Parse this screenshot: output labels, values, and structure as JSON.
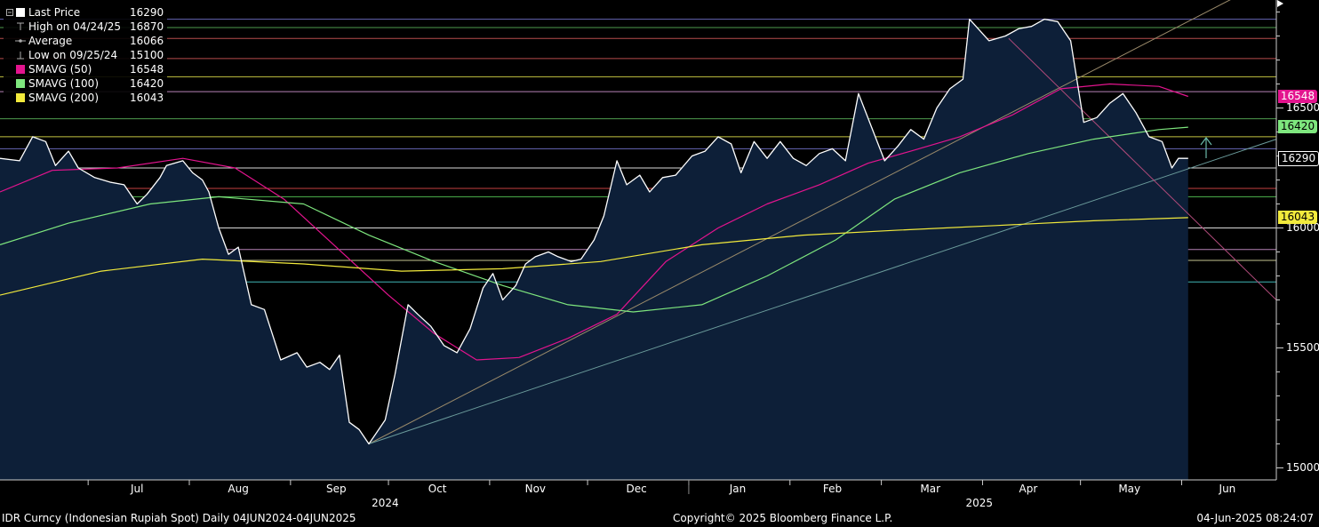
{
  "legend": [
    {
      "label": "Last Price",
      "value": "16290",
      "color": "#ffffff",
      "symbol": "box"
    },
    {
      "label": "High on 04/24/25",
      "value": "16870",
      "color": "#aaaaaa",
      "symbol": "high"
    },
    {
      "label": "Average",
      "value": "16066",
      "color": "#aaaaaa",
      "symbol": "avg"
    },
    {
      "label": "Low on 09/25/24",
      "value": "15100",
      "color": "#aaaaaa",
      "symbol": "low"
    },
    {
      "label": "SMAVG (50)",
      "value": "16548",
      "color": "#e3148e",
      "symbol": "box"
    },
    {
      "label": "SMAVG (100)",
      "value": "16420",
      "color": "#7ee67e",
      "symbol": "box"
    },
    {
      "label": "SMAVG (200)",
      "value": "16043",
      "color": "#f2ea3c",
      "symbol": "box"
    }
  ],
  "badges": [
    {
      "text": "16548",
      "bg": "#e3148e",
      "fg": "#ffffff",
      "value": 16548
    },
    {
      "text": "16420",
      "bg": "#7ee67e",
      "fg": "#000000",
      "value": 16420
    },
    {
      "text": "16290",
      "bg": "#000000",
      "fg": "#ffffff",
      "value": 16290
    },
    {
      "text": "16043",
      "bg": "#f2ea3c",
      "fg": "#000000",
      "value": 16043
    }
  ],
  "footer": {
    "left": "IDR Curncy (Indonesian Rupiah Spot)  Daily 04JUN2024-04JUN2025",
    "center": "Copyright© 2025 Bloomberg Finance L.P.",
    "right": "04-Jun-2025 08:24:07"
  },
  "chart_data": {
    "type": "line",
    "ylim": [
      14950,
      16950
    ],
    "y_ticks": [
      15000,
      15500,
      16000,
      16500
    ],
    "month_labels": [
      "Jul",
      "Aug",
      "Sep",
      "Oct",
      "Nov",
      "Dec",
      "Jan",
      "Feb",
      "Mar",
      "Apr",
      "May",
      "Jun"
    ],
    "year_labels": [
      "2024",
      "2025"
    ],
    "x_start": "2024-06-04",
    "x_end": "2025-06-30",
    "last_data_date": "2025-06-03",
    "horizontal_levels": [
      {
        "value": 16870,
        "color": "#7a7ad6"
      },
      {
        "value": 16835,
        "color": "#5cb85c"
      },
      {
        "value": 16790,
        "color": "#d65a5a"
      },
      {
        "value": 16706,
        "color": "#d65a5a"
      },
      {
        "value": 16630,
        "color": "#e6e64c"
      },
      {
        "value": 16568,
        "color": "#d69ad6"
      },
      {
        "value": 16455,
        "color": "#5cb85c"
      },
      {
        "value": 16380,
        "color": "#e6e64c"
      },
      {
        "value": 16330,
        "color": "#7a7ad6"
      },
      {
        "value": 16250,
        "color": "#ffffff"
      },
      {
        "value": 16165,
        "color": "#e84a4a"
      },
      {
        "value": 16130,
        "color": "#5cd65c"
      },
      {
        "value": 16000,
        "color": "#ffffff"
      },
      {
        "value": 15910,
        "color": "#d69ad6"
      },
      {
        "value": 15865,
        "color": "#e6e6aa"
      },
      {
        "value": 15775,
        "color": "#4cd6d6"
      }
    ],
    "trend_lines": [
      {
        "from": [
          "2024-09-25",
          15100
        ],
        "to": [
          "2025-06-30",
          17050
        ],
        "color": "#9a8a6a"
      },
      {
        "from": [
          "2024-09-25",
          15100
        ],
        "to": [
          "2025-06-30",
          16370
        ],
        "color": "#6a9a9a"
      },
      {
        "from": [
          "2025-04-09",
          16790
        ],
        "to": [
          "2025-06-30",
          15700
        ],
        "color": "#b04a7a"
      }
    ],
    "series": [
      {
        "name": "Last Price",
        "color": "#ffffff",
        "fill": "#0d1f38",
        "points": [
          [
            "2024-06-04",
            16290
          ],
          [
            "2024-06-10",
            16280
          ],
          [
            "2024-06-14",
            16380
          ],
          [
            "2024-06-18",
            16360
          ],
          [
            "2024-06-21",
            16260
          ],
          [
            "2024-06-25",
            16320
          ],
          [
            "2024-06-28",
            16250
          ],
          [
            "2024-07-03",
            16210
          ],
          [
            "2024-07-08",
            16190
          ],
          [
            "2024-07-12",
            16180
          ],
          [
            "2024-07-16",
            16100
          ],
          [
            "2024-07-19",
            16140
          ],
          [
            "2024-07-23",
            16210
          ],
          [
            "2024-07-25",
            16260
          ],
          [
            "2024-07-30",
            16280
          ],
          [
            "2024-08-02",
            16230
          ],
          [
            "2024-08-05",
            16200
          ],
          [
            "2024-08-07",
            16150
          ],
          [
            "2024-08-10",
            16000
          ],
          [
            "2024-08-13",
            15890
          ],
          [
            "2024-08-16",
            15920
          ],
          [
            "2024-08-20",
            15680
          ],
          [
            "2024-08-24",
            15660
          ],
          [
            "2024-08-29",
            15450
          ],
          [
            "2024-09-03",
            15480
          ],
          [
            "2024-09-06",
            15420
          ],
          [
            "2024-09-10",
            15440
          ],
          [
            "2024-09-13",
            15410
          ],
          [
            "2024-09-16",
            15470
          ],
          [
            "2024-09-19",
            15190
          ],
          [
            "2024-09-22",
            15160
          ],
          [
            "2024-09-25",
            15100
          ],
          [
            "2024-09-27",
            15140
          ],
          [
            "2024-09-30",
            15200
          ],
          [
            "2024-10-03",
            15390
          ],
          [
            "2024-10-07",
            15680
          ],
          [
            "2024-10-10",
            15640
          ],
          [
            "2024-10-14",
            15590
          ],
          [
            "2024-10-18",
            15510
          ],
          [
            "2024-10-22",
            15480
          ],
          [
            "2024-10-26",
            15580
          ],
          [
            "2024-10-30",
            15750
          ],
          [
            "2024-11-02",
            15810
          ],
          [
            "2024-11-05",
            15700
          ],
          [
            "2024-11-09",
            15760
          ],
          [
            "2024-11-12",
            15850
          ],
          [
            "2024-11-15",
            15880
          ],
          [
            "2024-11-19",
            15900
          ],
          [
            "2024-11-22",
            15880
          ],
          [
            "2024-11-26",
            15860
          ],
          [
            "2024-11-29",
            15870
          ],
          [
            "2024-12-03",
            15950
          ],
          [
            "2024-12-06",
            16050
          ],
          [
            "2024-12-10",
            16280
          ],
          [
            "2024-12-13",
            16180
          ],
          [
            "2024-12-17",
            16220
          ],
          [
            "2024-12-20",
            16150
          ],
          [
            "2024-12-24",
            16210
          ],
          [
            "2024-12-28",
            16220
          ],
          [
            "2025-01-02",
            16300
          ],
          [
            "2025-01-06",
            16320
          ],
          [
            "2025-01-10",
            16380
          ],
          [
            "2025-01-14",
            16350
          ],
          [
            "2025-01-17",
            16230
          ],
          [
            "2025-01-21",
            16360
          ],
          [
            "2025-01-25",
            16290
          ],
          [
            "2025-01-29",
            16360
          ],
          [
            "2025-02-02",
            16290
          ],
          [
            "2025-02-06",
            16260
          ],
          [
            "2025-02-10",
            16310
          ],
          [
            "2025-02-14",
            16330
          ],
          [
            "2025-02-18",
            16280
          ],
          [
            "2025-02-22",
            16560
          ],
          [
            "2025-02-26",
            16420
          ],
          [
            "2025-03-02",
            16280
          ],
          [
            "2025-03-06",
            16340
          ],
          [
            "2025-03-10",
            16410
          ],
          [
            "2025-03-14",
            16370
          ],
          [
            "2025-03-18",
            16500
          ],
          [
            "2025-03-22",
            16580
          ],
          [
            "2025-03-26",
            16620
          ],
          [
            "2025-03-28",
            16870
          ],
          [
            "2025-04-03",
            16780
          ],
          [
            "2025-04-08",
            16800
          ],
          [
            "2025-04-12",
            16830
          ],
          [
            "2025-04-16",
            16840
          ],
          [
            "2025-04-20",
            16870
          ],
          [
            "2025-04-24",
            16860
          ],
          [
            "2025-04-28",
            16780
          ],
          [
            "2025-05-02",
            16440
          ],
          [
            "2025-05-06",
            16460
          ],
          [
            "2025-05-10",
            16520
          ],
          [
            "2025-05-14",
            16560
          ],
          [
            "2025-05-18",
            16480
          ],
          [
            "2025-05-22",
            16380
          ],
          [
            "2025-05-26",
            16360
          ],
          [
            "2025-05-29",
            16250
          ],
          [
            "2025-05-31",
            16290
          ],
          [
            "2025-06-03",
            16290
          ]
        ]
      },
      {
        "name": "SMAVG (50)",
        "color": "#e3148e",
        "points": [
          [
            "2024-06-04",
            16150
          ],
          [
            "2024-06-20",
            16240
          ],
          [
            "2024-07-10",
            16250
          ],
          [
            "2024-07-30",
            16290
          ],
          [
            "2024-08-15",
            16250
          ],
          [
            "2024-08-30",
            16120
          ],
          [
            "2024-09-15",
            15920
          ],
          [
            "2024-10-01",
            15720
          ],
          [
            "2024-10-15",
            15560
          ],
          [
            "2024-10-28",
            15450
          ],
          [
            "2024-11-10",
            15460
          ],
          [
            "2024-11-25",
            15540
          ],
          [
            "2024-12-10",
            15640
          ],
          [
            "2024-12-25",
            15860
          ],
          [
            "2025-01-10",
            16000
          ],
          [
            "2025-01-25",
            16100
          ],
          [
            "2025-02-10",
            16180
          ],
          [
            "2025-02-25",
            16270
          ],
          [
            "2025-03-10",
            16320
          ],
          [
            "2025-03-25",
            16380
          ],
          [
            "2025-04-10",
            16470
          ],
          [
            "2025-04-25",
            16580
          ],
          [
            "2025-05-10",
            16600
          ],
          [
            "2025-05-25",
            16590
          ],
          [
            "2025-06-03",
            16548
          ]
        ]
      },
      {
        "name": "SMAVG (100)",
        "color": "#7ee67e",
        "points": [
          [
            "2024-06-04",
            15930
          ],
          [
            "2024-06-25",
            16020
          ],
          [
            "2024-07-20",
            16100
          ],
          [
            "2024-08-10",
            16130
          ],
          [
            "2024-09-05",
            16100
          ],
          [
            "2024-09-25",
            15970
          ],
          [
            "2024-10-15",
            15860
          ],
          [
            "2024-11-05",
            15760
          ],
          [
            "2024-11-25",
            15680
          ],
          [
            "2024-12-15",
            15650
          ],
          [
            "2025-01-05",
            15680
          ],
          [
            "2025-01-25",
            15800
          ],
          [
            "2025-02-15",
            15950
          ],
          [
            "2025-03-05",
            16120
          ],
          [
            "2025-03-25",
            16230
          ],
          [
            "2025-04-15",
            16310
          ],
          [
            "2025-05-05",
            16370
          ],
          [
            "2025-05-25",
            16410
          ],
          [
            "2025-06-03",
            16420
          ]
        ]
      },
      {
        "name": "SMAVG (200)",
        "color": "#f2ea3c",
        "points": [
          [
            "2024-06-04",
            15720
          ],
          [
            "2024-07-05",
            15820
          ],
          [
            "2024-08-05",
            15870
          ],
          [
            "2024-09-05",
            15850
          ],
          [
            "2024-10-05",
            15820
          ],
          [
            "2024-11-05",
            15830
          ],
          [
            "2024-12-05",
            15860
          ],
          [
            "2025-01-05",
            15930
          ],
          [
            "2025-02-05",
            15970
          ],
          [
            "2025-03-05",
            15990
          ],
          [
            "2025-04-05",
            16010
          ],
          [
            "2025-05-05",
            16030
          ],
          [
            "2025-06-03",
            16043
          ]
        ]
      }
    ]
  }
}
